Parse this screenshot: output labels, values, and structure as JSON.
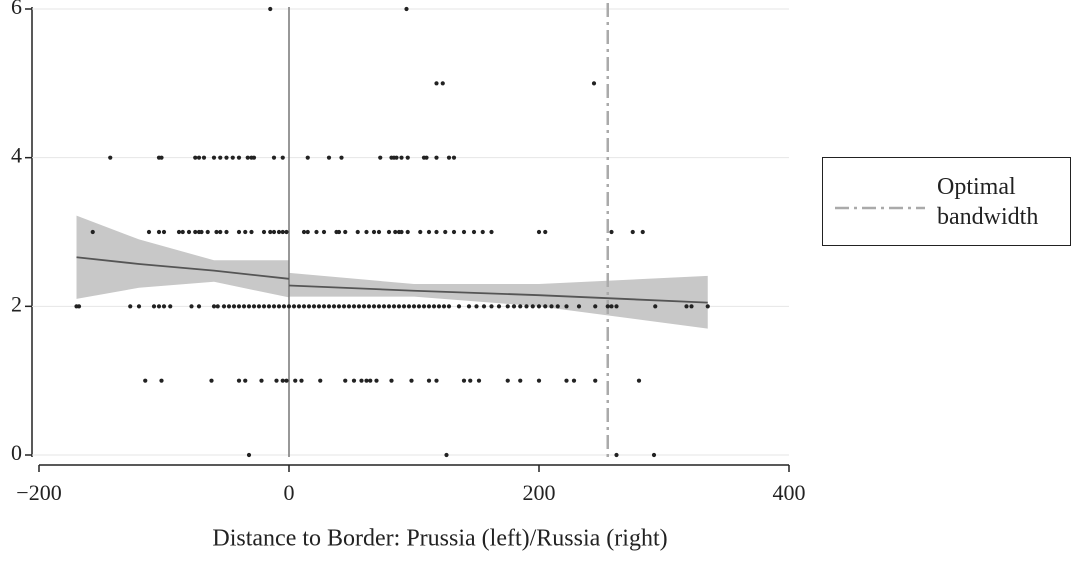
{
  "chart_data": {
    "type": "scatter",
    "x_label": "Distance to Border: Prussia (left)/Russia (right)",
    "xlim": [
      -200,
      400
    ],
    "ylim": [
      0,
      6
    ],
    "xticks": [
      {
        "value": -200,
        "label": "−200"
      },
      0,
      200,
      400
    ],
    "yticks": [
      0,
      2,
      4,
      6
    ],
    "grid": true,
    "point_color": "#222222",
    "points": {
      "x": [
        -15,
        94,
        118,
        123,
        244,
        -143,
        -104,
        -102,
        -75,
        -72,
        -68,
        -60,
        -55,
        -50,
        -45,
        -40,
        -33,
        -30,
        -28,
        -12,
        -5,
        15,
        32,
        42,
        73,
        82,
        84,
        86,
        90,
        95,
        108,
        110,
        118,
        128,
        132,
        -157,
        -112,
        -104,
        -100,
        -88,
        -85,
        -80,
        -75,
        -72,
        -70,
        -65,
        -58,
        -55,
        -50,
        -40,
        -35,
        -30,
        -20,
        -15,
        -12,
        -8,
        -5,
        -2,
        12,
        15,
        22,
        28,
        38,
        40,
        45,
        55,
        62,
        68,
        72,
        80,
        85,
        88,
        90,
        95,
        105,
        112,
        118,
        125,
        132,
        140,
        148,
        155,
        162,
        200,
        205,
        258,
        275,
        283,
        -170,
        -168,
        -127,
        -120,
        -108,
        -104,
        -100,
        -95,
        -78,
        -72,
        -60,
        -57,
        -52,
        -48,
        -44,
        -40,
        -36,
        -32,
        -28,
        -24,
        -20,
        -16,
        -12,
        -8,
        -4,
        0,
        4,
        8,
        12,
        16,
        20,
        24,
        28,
        32,
        36,
        40,
        44,
        48,
        52,
        56,
        60,
        64,
        68,
        72,
        76,
        80,
        84,
        88,
        92,
        96,
        100,
        104,
        108,
        112,
        116,
        120,
        124,
        128,
        136,
        144,
        150,
        156,
        162,
        168,
        175,
        180,
        185,
        190,
        195,
        200,
        205,
        210,
        215,
        222,
        232,
        245,
        255,
        258,
        262,
        293,
        318,
        322,
        335,
        -115,
        -102,
        -62,
        -40,
        -35,
        -22,
        -10,
        -5,
        -2,
        5,
        10,
        25,
        45,
        52,
        58,
        62,
        65,
        70,
        82,
        98,
        112,
        118,
        140,
        145,
        152,
        175,
        185,
        200,
        222,
        228,
        245,
        280,
        -32,
        126,
        262,
        292
      ],
      "y": [
        6,
        6,
        5,
        5,
        5,
        4,
        4,
        4,
        4,
        4,
        4,
        4,
        4,
        4,
        4,
        4,
        4,
        4,
        4,
        4,
        4,
        4,
        4,
        4,
        4,
        4,
        4,
        4,
        4,
        4,
        4,
        4,
        4,
        4,
        4,
        3,
        3,
        3,
        3,
        3,
        3,
        3,
        3,
        3,
        3,
        3,
        3,
        3,
        3,
        3,
        3,
        3,
        3,
        3,
        3,
        3,
        3,
        3,
        3,
        3,
        3,
        3,
        3,
        3,
        3,
        3,
        3,
        3,
        3,
        3,
        3,
        3,
        3,
        3,
        3,
        3,
        3,
        3,
        3,
        3,
        3,
        3,
        3,
        3,
        3,
        3,
        3,
        3,
        2,
        2,
        2,
        2,
        2,
        2,
        2,
        2,
        2,
        2,
        2,
        2,
        2,
        2,
        2,
        2,
        2,
        2,
        2,
        2,
        2,
        2,
        2,
        2,
        2,
        2,
        2,
        2,
        2,
        2,
        2,
        2,
        2,
        2,
        2,
        2,
        2,
        2,
        2,
        2,
        2,
        2,
        2,
        2,
        2,
        2,
        2,
        2,
        2,
        2,
        2,
        2,
        2,
        2,
        2,
        2,
        2,
        2,
        2,
        2,
        2,
        2,
        2,
        2,
        2,
        2,
        2,
        2,
        2,
        2,
        2,
        2,
        2,
        2,
        2,
        2,
        2,
        2,
        2,
        2,
        2,
        2,
        2,
        1,
        1,
        1,
        1,
        1,
        1,
        1,
        1,
        1,
        1,
        1,
        1,
        1,
        1,
        1,
        1,
        1,
        1,
        1,
        1,
        1,
        1,
        1,
        1,
        1,
        1,
        1,
        1,
        1,
        1,
        1,
        1,
        0,
        0,
        0,
        0
      ]
    },
    "fits": [
      {
        "color": "#555555",
        "band_color": "#c8c8c8",
        "x": [
          -170,
          -120,
          -60,
          0
        ],
        "y": [
          2.66,
          2.57,
          2.48,
          2.37
        ],
        "upper": [
          3.22,
          2.9,
          2.62,
          2.62
        ],
        "lower": [
          2.1,
          2.25,
          2.33,
          2.12
        ]
      },
      {
        "color": "#555555",
        "band_color": "#c8c8c8",
        "x": [
          0,
          100,
          200,
          335
        ],
        "y": [
          2.28,
          2.21,
          2.15,
          2.05
        ],
        "upper": [
          2.45,
          2.3,
          2.3,
          2.41
        ],
        "lower": [
          2.13,
          2.13,
          2.0,
          1.7
        ]
      }
    ],
    "cutoff": {
      "x": 0,
      "color": "#777777"
    },
    "bandwidth": {
      "x": 255,
      "name": "Optimal bandwidth",
      "color": "#aaaaaa",
      "dash": "14 5 3 5"
    }
  }
}
